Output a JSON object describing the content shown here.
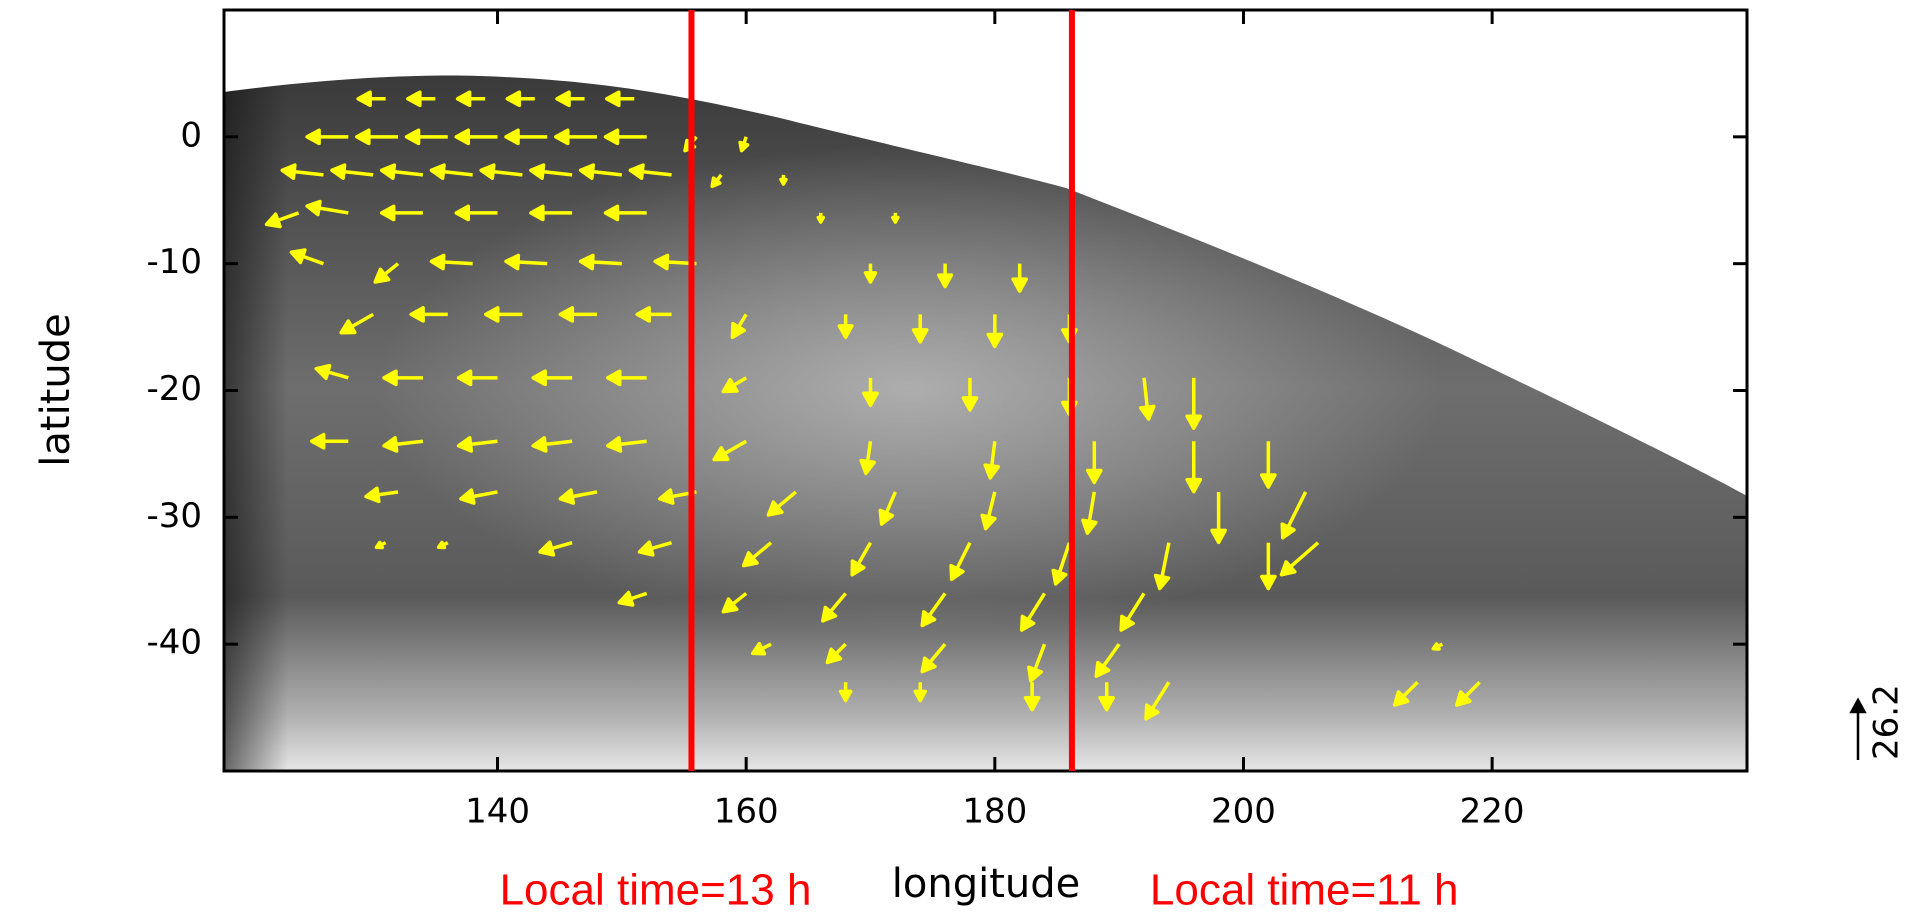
{
  "chart_data": {
    "type": "quiver",
    "xlabel": "longitude",
    "ylabel": "latitude",
    "xlim": [
      118,
      240.5
    ],
    "ylim": [
      -50,
      10
    ],
    "xticks": [
      140,
      160,
      180,
      200,
      220
    ],
    "yticks": [
      0,
      -10,
      -20,
      -30,
      -40
    ],
    "color": "#ffff00",
    "reference_vector": 26.2,
    "markers": [
      {
        "x": 155.6,
        "label": "Local time=13 h",
        "color": "#ff0000"
      },
      {
        "x": 186.2,
        "label": "Local time=11 h",
        "color": "#ff0000"
      }
    ],
    "vectors": [
      [
        131,
        3,
        -12,
        0
      ],
      [
        135,
        3,
        -12,
        0
      ],
      [
        139,
        3,
        -12,
        0
      ],
      [
        143,
        3,
        -12,
        0
      ],
      [
        147,
        3,
        -12,
        0
      ],
      [
        151,
        3,
        -12,
        0
      ],
      [
        128,
        0,
        -18,
        0
      ],
      [
        132,
        0,
        -18,
        0
      ],
      [
        136,
        0,
        -18,
        0
      ],
      [
        140,
        0,
        -18,
        0
      ],
      [
        144,
        0,
        -18,
        0
      ],
      [
        148,
        0,
        -18,
        0
      ],
      [
        152,
        0,
        -18,
        0
      ],
      [
        156,
        0,
        -5,
        -6
      ],
      [
        160,
        0,
        -2,
        -6
      ],
      [
        126,
        -3,
        -18,
        2
      ],
      [
        130,
        -3,
        -18,
        2
      ],
      [
        134,
        -3,
        -18,
        2
      ],
      [
        138,
        -3,
        -18,
        2
      ],
      [
        142,
        -3,
        -18,
        2
      ],
      [
        146,
        -3,
        -18,
        2
      ],
      [
        150,
        -3,
        -18,
        2
      ],
      [
        154,
        -3,
        -18,
        2
      ],
      [
        158,
        -3,
        -4,
        -5
      ],
      [
        163,
        -3,
        0,
        -4
      ],
      [
        124,
        -6,
        -14,
        -5
      ],
      [
        128,
        -6,
        -18,
        3
      ],
      [
        134,
        -6,
        -18,
        0
      ],
      [
        140,
        -6,
        -18,
        0
      ],
      [
        146,
        -6,
        -18,
        0
      ],
      [
        152,
        -6,
        -18,
        0
      ],
      [
        166,
        -6,
        0,
        -4
      ],
      [
        172,
        -6,
        0,
        -4
      ],
      [
        126,
        -10,
        -14,
        5
      ],
      [
        132,
        -10,
        -10,
        -8
      ],
      [
        138,
        -10,
        -18,
        1
      ],
      [
        144,
        -10,
        -18,
        1
      ],
      [
        150,
        -10,
        -18,
        1
      ],
      [
        156,
        -10,
        -18,
        1
      ],
      [
        170,
        -10,
        0,
        -8
      ],
      [
        176,
        -10,
        0,
        -10
      ],
      [
        182,
        -10,
        0,
        -12
      ],
      [
        130,
        -14,
        -14,
        -8
      ],
      [
        136,
        -14,
        -16,
        0
      ],
      [
        142,
        -14,
        -16,
        0
      ],
      [
        148,
        -14,
        -16,
        0
      ],
      [
        154,
        -14,
        -15,
        0
      ],
      [
        160,
        -14,
        -6,
        -10
      ],
      [
        168,
        -14,
        0,
        -10
      ],
      [
        174,
        -14,
        0,
        -12
      ],
      [
        180,
        -14,
        0,
        -14
      ],
      [
        186,
        -14,
        0,
        -12
      ],
      [
        128,
        -19,
        -14,
        4
      ],
      [
        134,
        -19,
        -17,
        0
      ],
      [
        140,
        -19,
        -17,
        0
      ],
      [
        146,
        -19,
        -17,
        0
      ],
      [
        152,
        -19,
        -17,
        0
      ],
      [
        160,
        -19,
        -10,
        -6
      ],
      [
        170,
        -19,
        0,
        -12
      ],
      [
        178,
        -19,
        0,
        -14
      ],
      [
        186,
        -19,
        0,
        -16
      ],
      [
        192,
        -19,
        2,
        -18
      ],
      [
        196,
        -19,
        0,
        -22
      ],
      [
        128,
        -24,
        -16,
        0
      ],
      [
        134,
        -24,
        -17,
        -2
      ],
      [
        140,
        -24,
        -17,
        -2
      ],
      [
        146,
        -24,
        -17,
        -2
      ],
      [
        152,
        -24,
        -17,
        -2
      ],
      [
        160,
        -24,
        -14,
        -8
      ],
      [
        170,
        -24,
        -2,
        -14
      ],
      [
        180,
        -24,
        -2,
        -16
      ],
      [
        188,
        -24,
        0,
        -18
      ],
      [
        196,
        -24,
        0,
        -22
      ],
      [
        202,
        -24,
        0,
        -20
      ],
      [
        132,
        -28,
        -14,
        -2
      ],
      [
        140,
        -28,
        -16,
        -3
      ],
      [
        148,
        -28,
        -16,
        -3
      ],
      [
        156,
        -28,
        -16,
        -3
      ],
      [
        164,
        -28,
        -12,
        -10
      ],
      [
        172,
        -28,
        -6,
        -14
      ],
      [
        180,
        -28,
        -4,
        -16
      ],
      [
        188,
        -28,
        -3,
        -18
      ],
      [
        198,
        -28,
        0,
        -22
      ],
      [
        205,
        -28,
        -10,
        -20
      ],
      [
        131,
        -32,
        -4,
        -2
      ],
      [
        136,
        -32,
        -4,
        -2
      ],
      [
        146,
        -32,
        -14,
        -4
      ],
      [
        154,
        -32,
        -14,
        -4
      ],
      [
        162,
        -32,
        -12,
        -10
      ],
      [
        170,
        -32,
        -8,
        -14
      ],
      [
        178,
        -32,
        -8,
        -16
      ],
      [
        186,
        -32,
        -6,
        -18
      ],
      [
        194,
        -32,
        -4,
        -20
      ],
      [
        202,
        -32,
        0,
        -20
      ],
      [
        206,
        -32,
        -16,
        -14
      ],
      [
        152,
        -36,
        -12,
        -4
      ],
      [
        160,
        -36,
        -10,
        -8
      ],
      [
        168,
        -36,
        -10,
        -12
      ],
      [
        176,
        -36,
        -10,
        -14
      ],
      [
        184,
        -36,
        -10,
        -16
      ],
      [
        192,
        -36,
        -10,
        -16
      ],
      [
        162,
        -40,
        -8,
        -4
      ],
      [
        168,
        -40,
        -8,
        -8
      ],
      [
        176,
        -40,
        -10,
        -12
      ],
      [
        184,
        -40,
        -6,
        -16
      ],
      [
        190,
        -40,
        -10,
        -14
      ],
      [
        216,
        -40,
        -4,
        -2
      ],
      [
        168,
        -43,
        0,
        -8
      ],
      [
        174,
        -43,
        0,
        -8
      ],
      [
        183,
        -43,
        0,
        -12
      ],
      [
        189,
        -43,
        0,
        -12
      ],
      [
        194,
        -43,
        -10,
        -16
      ],
      [
        214,
        -43,
        -10,
        -10
      ],
      [
        219,
        -43,
        -10,
        -10
      ]
    ]
  }
}
